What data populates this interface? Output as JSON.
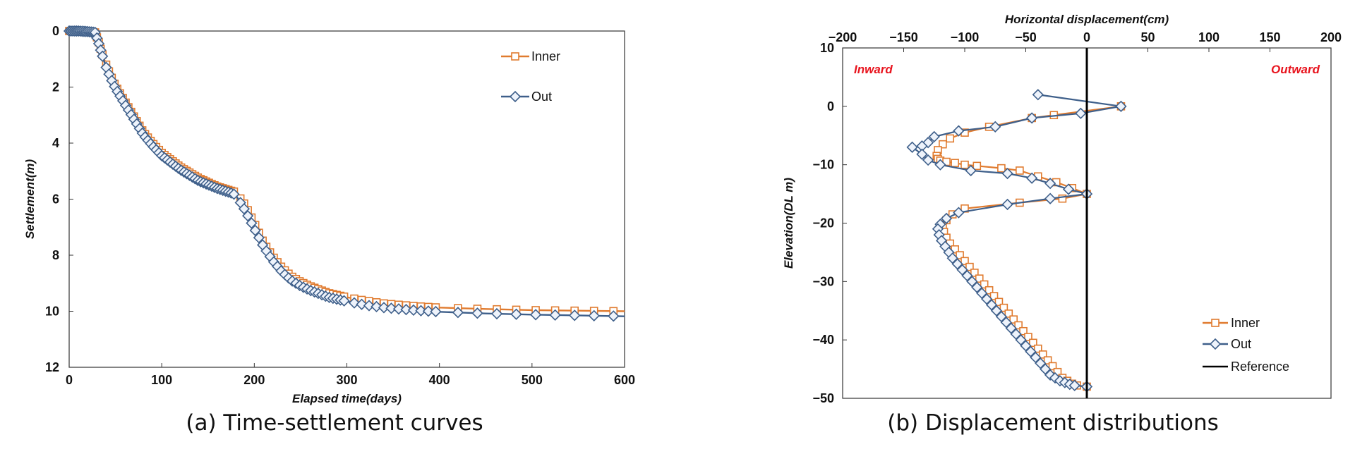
{
  "chart_data": [
    {
      "type": "scatter",
      "caption": "(a) Time-settlement curves",
      "xlabel": "Elapsed time(days)",
      "ylabel": "Settlement(m)",
      "xlim": [
        0,
        600
      ],
      "ylim": [
        0,
        12
      ],
      "y_inverted": true,
      "xticks": [
        "0",
        "100",
        "200",
        "300",
        "400",
        "500",
        "600"
      ],
      "yticks": [
        "0",
        "2",
        "4",
        "6",
        "8",
        "10",
        "12"
      ],
      "legend_position": "top-right",
      "series": [
        {
          "name": "Inner",
          "color": "#e07b2f",
          "marker": "square",
          "x": [
            0,
            10,
            20,
            28,
            32,
            35,
            40,
            45,
            50,
            60,
            70,
            80,
            90,
            100,
            120,
            140,
            160,
            175,
            180,
            190,
            200,
            210,
            220,
            230,
            240,
            250,
            260,
            280,
            300,
            320,
            340,
            360,
            380,
            400,
            450,
            500,
            550,
            600
          ],
          "y": [
            0,
            0,
            0.02,
            0.05,
            0.4,
            0.75,
            1.2,
            1.6,
            1.95,
            2.5,
            3.05,
            3.6,
            4.0,
            4.35,
            4.85,
            5.25,
            5.55,
            5.7,
            5.75,
            6.2,
            6.85,
            7.55,
            8.05,
            8.45,
            8.75,
            8.95,
            9.1,
            9.35,
            9.5,
            9.62,
            9.72,
            9.78,
            9.83,
            9.87,
            9.92,
            9.96,
            9.98,
            10.0
          ]
        },
        {
          "name": "Out",
          "color": "#3e5f8a",
          "marker": "diamond",
          "x": [
            0,
            10,
            20,
            28,
            32,
            35,
            40,
            45,
            50,
            60,
            70,
            80,
            90,
            100,
            120,
            140,
            160,
            175,
            180,
            190,
            200,
            210,
            220,
            230,
            240,
            250,
            260,
            280,
            300,
            320,
            340,
            360,
            380,
            400,
            450,
            500,
            550,
            600
          ],
          "y": [
            0,
            0,
            0.02,
            0.05,
            0.45,
            0.8,
            1.3,
            1.7,
            2.05,
            2.6,
            3.15,
            3.7,
            4.1,
            4.45,
            4.95,
            5.35,
            5.62,
            5.78,
            5.85,
            6.4,
            7.05,
            7.7,
            8.2,
            8.6,
            8.9,
            9.1,
            9.25,
            9.5,
            9.65,
            9.78,
            9.87,
            9.93,
            9.98,
            10.02,
            10.08,
            10.12,
            10.15,
            10.18
          ]
        }
      ]
    },
    {
      "type": "line",
      "caption": "(b) Displacement distributions",
      "xlabel": "Horizontal displacement(cm)",
      "ylabel": "Elevation(DL m)",
      "xlim": [
        -200,
        200
      ],
      "ylim": [
        -50,
        10
      ],
      "xaxis_position": "top",
      "xticks": [
        "−200",
        "−150",
        "−100",
        "−50",
        "0",
        "50",
        "100",
        "150",
        "200"
      ],
      "yticks": [
        "10",
        "0",
        "−10",
        "−20",
        "−30",
        "−40",
        "−50"
      ],
      "annotations": [
        "Inward",
        "Outward"
      ],
      "legend_position": "bottom-right",
      "series": [
        {
          "name": "Inner",
          "color": "#e07b2f",
          "marker": "square",
          "x": [
            28,
            -27,
            -45,
            -80,
            -100,
            -112,
            -118,
            -122,
            -123,
            -122,
            -120,
            -115,
            -108,
            -100,
            -90,
            -70,
            -55,
            -40,
            -25,
            -12,
            0,
            -20,
            -55,
            -100,
            -110,
            -115,
            -118,
            -117,
            -115,
            -112,
            -108,
            -104,
            -100,
            -96,
            -92,
            -88,
            -84,
            -80,
            -76,
            -72,
            -68,
            -64,
            -60,
            -56,
            -52,
            -48,
            -44,
            -40,
            -36,
            -32,
            -28,
            -24,
            -20,
            -16,
            -12,
            -8,
            0
          ],
          "y": [
            0,
            -1.5,
            -2,
            -3.5,
            -4.5,
            -5.5,
            -6.5,
            -7.5,
            -8.5,
            -9,
            -9.3,
            -9.5,
            -9.7,
            -10,
            -10.2,
            -10.6,
            -11,
            -12,
            -13,
            -14,
            -15,
            -15.8,
            -16.5,
            -17.5,
            -18.5,
            -19.5,
            -20.5,
            -21.5,
            -22.5,
            -23.5,
            -24.5,
            -25.5,
            -26.5,
            -27.5,
            -28.5,
            -29.5,
            -30.5,
            -31.5,
            -32.5,
            -33.5,
            -34.5,
            -35.5,
            -36.5,
            -37.5,
            -38.5,
            -39.5,
            -40.5,
            -41.5,
            -42.5,
            -43.5,
            -44.5,
            -45.5,
            -46.5,
            -47,
            -47.5,
            -47.8,
            -48
          ]
        },
        {
          "name": "Out",
          "color": "#3e5f8a",
          "marker": "diamond",
          "x": [
            -40,
            28,
            -5,
            -45,
            -75,
            -105,
            -125,
            -130,
            -135,
            -143,
            -135,
            -130,
            -120,
            -95,
            -65,
            -45,
            -30,
            -15,
            0,
            -30,
            -65,
            -105,
            -115,
            -120,
            -122,
            -121,
            -119,
            -116,
            -113,
            -110,
            -106,
            -102,
            -98,
            -94,
            -90,
            -86,
            -82,
            -78,
            -74,
            -70,
            -66,
            -62,
            -58,
            -54,
            -50,
            -46,
            -42,
            -38,
            -34,
            -30,
            -26,
            -22,
            -18,
            -14,
            -10,
            0
          ],
          "y": [
            2,
            0,
            -1.2,
            -2,
            -3.5,
            -4.2,
            -5.2,
            -6.2,
            -6.8,
            -7,
            -8.2,
            -9.2,
            -10,
            -11,
            -11.5,
            -12.3,
            -13.2,
            -14.2,
            -15,
            -15.8,
            -16.8,
            -18.2,
            -19.2,
            -20.2,
            -21,
            -22,
            -23,
            -24,
            -25,
            -26,
            -27,
            -28,
            -29,
            -30,
            -31,
            -32,
            -33,
            -34,
            -35,
            -36,
            -37,
            -38,
            -39,
            -40,
            -41,
            -42,
            -43,
            -44,
            -45,
            -46,
            -46.5,
            -47,
            -47.3,
            -47.6,
            -47.8,
            -48
          ]
        },
        {
          "name": "Reference",
          "color": "#000000",
          "marker": "none",
          "x": [
            0,
            0
          ],
          "y": [
            10,
            -50
          ]
        }
      ]
    }
  ]
}
